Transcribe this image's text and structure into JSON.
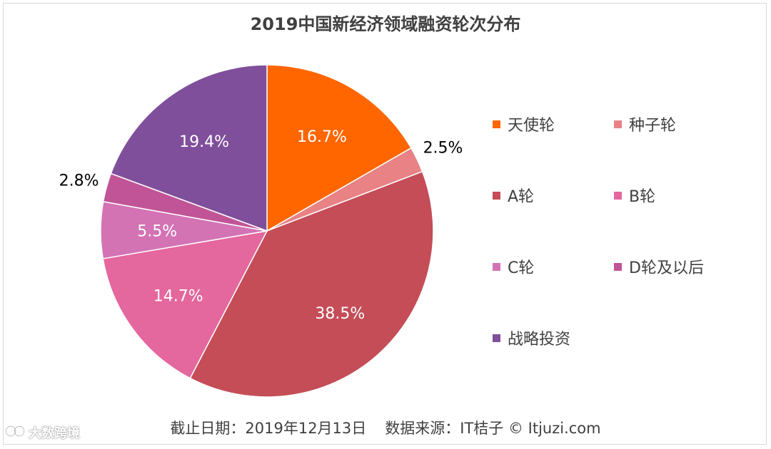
{
  "chart_data": {
    "type": "pie",
    "title": "2019中国新经济领域融资轮次分布",
    "slices": [
      {
        "label": "天使轮",
        "value": 16.7,
        "display": "16.7%",
        "color": "#ff6600",
        "label_inside": true
      },
      {
        "label": "种子轮",
        "value": 2.5,
        "display": "2.5%",
        "color": "#e88285",
        "label_inside": false
      },
      {
        "label": "A轮",
        "value": 38.5,
        "display": "38.5%",
        "color": "#c44d57",
        "label_inside": true
      },
      {
        "label": "B轮",
        "value": 14.7,
        "display": "14.7%",
        "color": "#e4679e",
        "label_inside": true
      },
      {
        "label": "C轮",
        "value": 5.5,
        "display": "5.5%",
        "color": "#d373b4",
        "label_inside": true
      },
      {
        "label": "D轮及以后",
        "value": 2.8,
        "display": "2.8%",
        "color": "#c15496",
        "label_inside": false
      },
      {
        "label": "战略投资",
        "value": 19.4,
        "display": "19.4%",
        "color": "#7f4f9b",
        "label_inside": true
      }
    ],
    "legend_position": "right"
  },
  "footer": {
    "date": "截止日期：2019年12月13日",
    "source": "数据来源：IT桔子 © Itjuzi.com"
  },
  "watermark": {
    "text": "大数跨境"
  }
}
